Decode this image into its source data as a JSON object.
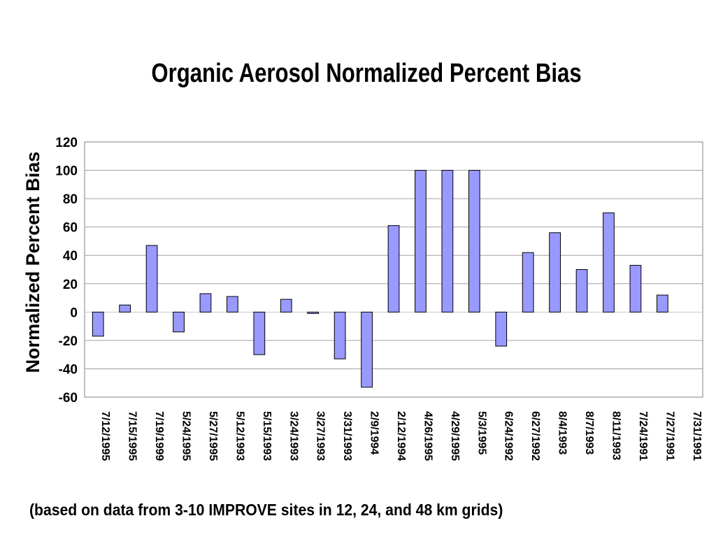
{
  "chart_data": {
    "type": "bar",
    "title": "Organic Aerosol Normalized Percent Bias",
    "xlabel": "",
    "ylabel": "Normalized Percent Bias",
    "ylim": [
      -60,
      120
    ],
    "yticks": [
      120,
      100,
      80,
      60,
      40,
      20,
      0,
      -20,
      -40,
      -60
    ],
    "grid": true,
    "legend": "none",
    "bar_color": "#9999ff",
    "categories": [
      "7/12/1995",
      "7/15/1995",
      "7/19/1999",
      "5/24/1995",
      "5/27/1995",
      "5/12/1993",
      "5/15/1993",
      "3/24/1993",
      "3/27/1993",
      "3/31/1993",
      "2/9/1994",
      "2/12/1994",
      "4/26/1995",
      "4/29/1995",
      "5/3/1995",
      "6/24/1992",
      "6/27/1992",
      "8/4/1993",
      "8/7/1993",
      "8/11/1993",
      "7/24/1991",
      "7/27/1991",
      "7/31/1991"
    ],
    "values": [
      -17,
      5,
      47,
      -14,
      13,
      11,
      -30,
      9,
      -1,
      -33,
      -53,
      61,
      100,
      100,
      100,
      -24,
      42,
      56,
      30,
      70,
      33,
      12,
      0
    ]
  },
  "footnote": "(based on data from 3-10 IMPROVE sites in 12, 24, and 48 km grids)"
}
